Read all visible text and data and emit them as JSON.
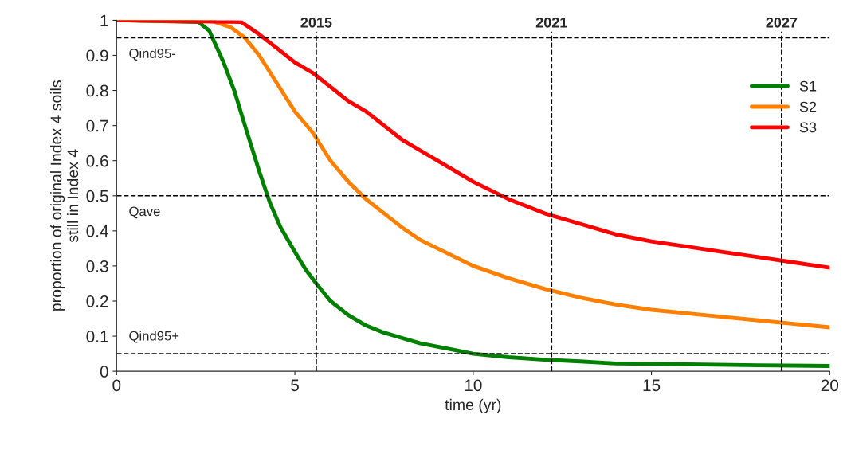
{
  "chart_data": {
    "type": "line",
    "xlabel": "time (yr)",
    "ylabel": "proportion of original Index 4 soils\nstill in Index 4",
    "xlim": [
      0,
      20
    ],
    "ylim": [
      0,
      1
    ],
    "xticks": [
      0,
      5,
      10,
      15,
      20
    ],
    "yticks": [
      0,
      0.1,
      0.2,
      0.3,
      0.4,
      0.5,
      0.6,
      0.7,
      0.8,
      0.9,
      1
    ],
    "grid": false,
    "legend": "right",
    "line_style": "solid",
    "marker": "none",
    "series": [
      {
        "name": "S1",
        "color": "#008000",
        "x": [
          0,
          2.3,
          2.6,
          3.0,
          3.3,
          3.6,
          4.0,
          4.3,
          4.6,
          5.0,
          5.3,
          5.6,
          6.0,
          6.5,
          7.0,
          7.5,
          8.5,
          9.5,
          10,
          11,
          12,
          13,
          14,
          16,
          18,
          20
        ],
        "values": [
          1,
          0.995,
          0.97,
          0.88,
          0.8,
          0.7,
          0.57,
          0.48,
          0.41,
          0.34,
          0.29,
          0.25,
          0.2,
          0.16,
          0.13,
          0.11,
          0.08,
          0.06,
          0.05,
          0.04,
          0.033,
          0.028,
          0.022,
          0.02,
          0.017,
          0.015
        ]
      },
      {
        "name": "S2",
        "color": "#ff8000",
        "x": [
          0,
          2.7,
          3.2,
          3.6,
          4.0,
          4.5,
          5,
          5.5,
          6,
          6.5,
          7,
          7.5,
          8,
          8.5,
          9,
          10,
          11,
          12,
          13,
          14,
          15,
          16,
          17,
          18,
          19,
          20
        ],
        "values": [
          1,
          0.997,
          0.98,
          0.95,
          0.9,
          0.82,
          0.74,
          0.68,
          0.6,
          0.54,
          0.49,
          0.45,
          0.41,
          0.375,
          0.35,
          0.3,
          0.265,
          0.235,
          0.21,
          0.19,
          0.175,
          0.165,
          0.155,
          0.145,
          0.135,
          0.125
        ]
      },
      {
        "name": "S3",
        "color": "#ff0000",
        "x": [
          0,
          3.5,
          4,
          4.5,
          5,
          5.5,
          6,
          6.5,
          7,
          7.5,
          8,
          8.5,
          9,
          10,
          11,
          12,
          13,
          14,
          15,
          16,
          17,
          18,
          19,
          20
        ],
        "values": [
          1,
          0.995,
          0.96,
          0.92,
          0.88,
          0.85,
          0.81,
          0.77,
          0.74,
          0.7,
          0.66,
          0.63,
          0.6,
          0.54,
          0.49,
          0.45,
          0.42,
          0.39,
          0.37,
          0.355,
          0.34,
          0.325,
          0.31,
          0.295
        ]
      }
    ],
    "ref_lines": [
      {
        "axis": "x",
        "value": 5.6,
        "color": "#000000",
        "line_style": "dashed"
      },
      {
        "axis": "x",
        "value": 12.2,
        "color": "#000000",
        "line_style": "dashed"
      },
      {
        "axis": "x",
        "value": 18.65,
        "color": "#000000",
        "line_style": "dashed"
      },
      {
        "axis": "y",
        "value": 0.95,
        "label": "Qind95-",
        "color": "#000000",
        "line_style": "dashed"
      },
      {
        "axis": "y",
        "value": 0.5,
        "label": "Qave",
        "color": "#000000",
        "line_style": "dashed"
      },
      {
        "axis": "y",
        "value": 0.05,
        "label": "Qind95+",
        "color": "#000000",
        "line_style": "dashed"
      }
    ],
    "annotations": [
      {
        "text": "2015",
        "x": 5.6,
        "y": 0.99
      },
      {
        "text": "2021",
        "x": 12.2,
        "y": 0.99
      },
      {
        "text": "2027",
        "x": 18.65,
        "y": 0.99
      }
    ]
  }
}
